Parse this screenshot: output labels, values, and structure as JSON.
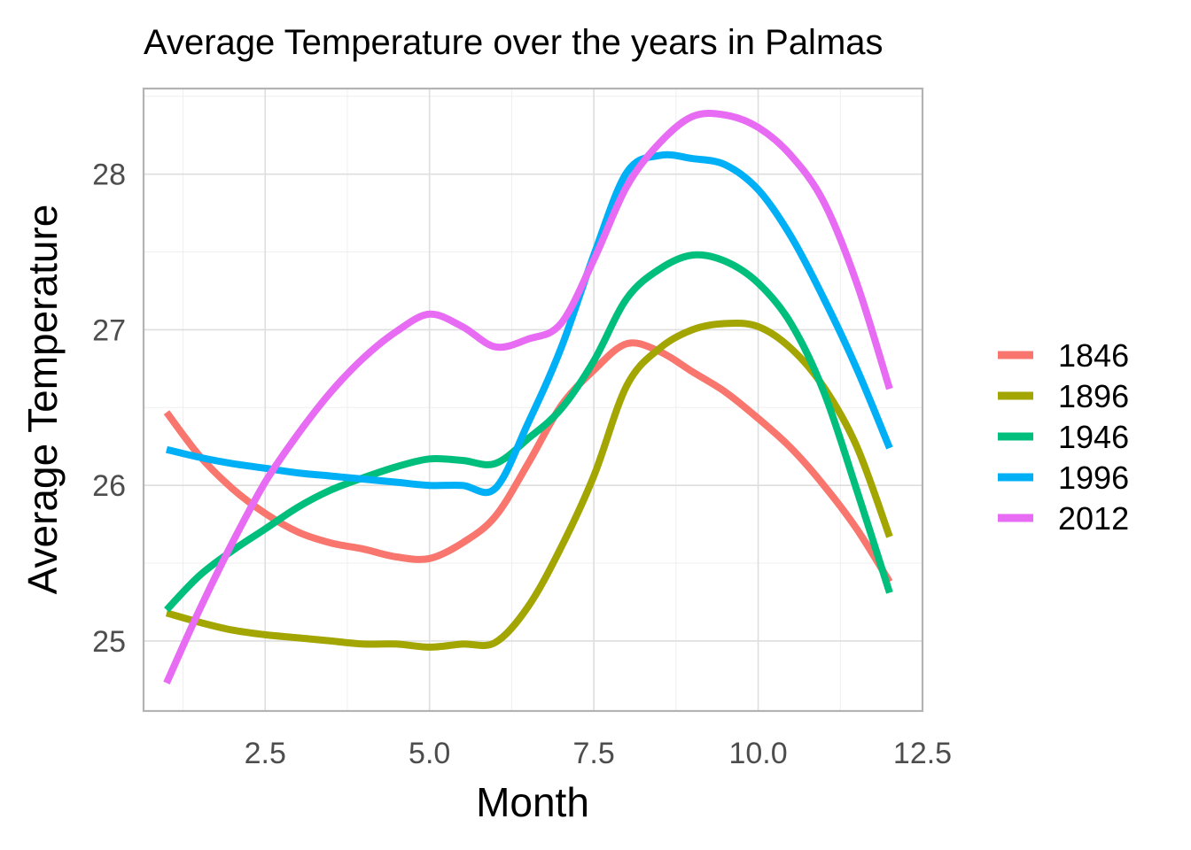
{
  "chart_data": {
    "type": "line",
    "title": "Average Temperature over the years in Palmas",
    "xlabel": "Month",
    "ylabel": "Average Temperature",
    "xlim": [
      0.65,
      12.5
    ],
    "ylim": [
      24.55,
      28.55
    ],
    "xticks": [
      2.5,
      5.0,
      7.5,
      10.0,
      12.5
    ],
    "xtick_labels": [
      "2.5",
      "5.0",
      "7.5",
      "10.0",
      "12.5"
    ],
    "yticks": [
      25,
      26,
      27,
      28
    ],
    "ytick_labels": [
      "25",
      "26",
      "27",
      "28"
    ],
    "grid": true,
    "legend_position": "right",
    "x": [
      1,
      1.5,
      2,
      2.5,
      3,
      3.5,
      4,
      4.5,
      5,
      5.5,
      6,
      6.5,
      7,
      7.5,
      8,
      8.5,
      9,
      9.5,
      10,
      10.5,
      11,
      11.5,
      12
    ],
    "series": [
      {
        "name": "1846",
        "color": "#F8766D",
        "values": [
          26.47,
          26.19,
          25.98,
          25.82,
          25.7,
          25.63,
          25.59,
          25.54,
          25.53,
          25.63,
          25.8,
          26.14,
          26.51,
          26.74,
          26.91,
          26.86,
          26.73,
          26.6,
          26.43,
          26.24,
          26.0,
          25.72,
          25.38
        ]
      },
      {
        "name": "1896",
        "color": "#A3A500",
        "values": [
          25.18,
          25.12,
          25.07,
          25.04,
          25.02,
          25.0,
          24.98,
          24.98,
          24.96,
          24.98,
          24.99,
          25.22,
          25.6,
          26.06,
          26.64,
          26.88,
          27.0,
          27.04,
          27.02,
          26.88,
          26.63,
          26.25,
          25.67
        ]
      },
      {
        "name": "1946",
        "color": "#00BF7D",
        "values": [
          25.2,
          25.42,
          25.58,
          25.72,
          25.86,
          25.97,
          26.05,
          26.12,
          26.17,
          26.16,
          26.14,
          26.3,
          26.49,
          26.8,
          27.2,
          27.39,
          27.48,
          27.44,
          27.3,
          27.04,
          26.6,
          25.97,
          25.31
        ]
      },
      {
        "name": "1996",
        "color": "#00B0F6",
        "values": [
          26.23,
          26.18,
          26.14,
          26.11,
          26.08,
          26.06,
          26.04,
          26.02,
          26.0,
          26.0,
          25.98,
          26.4,
          26.88,
          27.48,
          28.01,
          28.12,
          28.1,
          28.06,
          27.9,
          27.6,
          27.2,
          26.75,
          26.24
        ]
      },
      {
        "name": "2012",
        "color": "#E76BF3",
        "values": [
          24.73,
          25.2,
          25.63,
          26.02,
          26.33,
          26.6,
          26.82,
          26.99,
          27.1,
          27.02,
          26.89,
          26.94,
          27.04,
          27.45,
          27.92,
          28.2,
          28.37,
          28.38,
          28.3,
          28.12,
          27.82,
          27.3,
          26.62
        ]
      }
    ]
  }
}
